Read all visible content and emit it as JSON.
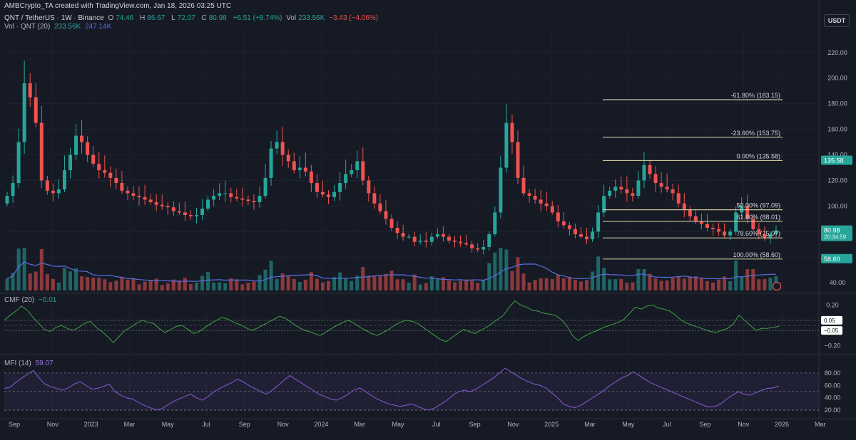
{
  "header": {
    "credit": "AMBCrypto_TA created with TradingView.com, Jan 18, 2026 03:25 UTC",
    "symbol": "QNT / TetherUS · 1W · Binance",
    "ohlc": [
      {
        "label": "O",
        "value": "74.46"
      },
      {
        "label": "H",
        "value": "86.67"
      },
      {
        "label": "L",
        "value": "72.07"
      },
      {
        "label": "C",
        "value": "80.98"
      }
    ],
    "change": "+6.51 (+8.74%)",
    "volume_label": "Vol",
    "volume_value": "233.56K",
    "volume_change": "−3.43 (−4.06%)",
    "vol_indicator": "Vol · QNT (20)",
    "vol_value": "233.56K",
    "vol_ma": "247.14K",
    "currency": "USDT",
    "cmf_label": "CMF (20)",
    "cmf_value": "−0.01",
    "mfi_label": "MFI (14)",
    "mfi_value": "59.07"
  },
  "chart_data": {
    "type": "candlestick",
    "timeframe": "1W",
    "x_labels": [
      "Sep",
      "Nov",
      "2023",
      "Mar",
      "May",
      "Jul",
      "Sep",
      "Nov",
      "2024",
      "Mar",
      "May",
      "Jul",
      "Sep",
      "Nov",
      "2025",
      "Mar",
      "May",
      "Jul",
      "Sep",
      "Nov",
      "2026",
      "Mar"
    ],
    "y_ticks": [
      "40.00",
      "60.00",
      "80.00",
      "100.00",
      "120.00",
      "140.00",
      "160.00",
      "180.00",
      "200.00",
      "220.00"
    ],
    "y_range": [
      34,
      236
    ],
    "price_labels": [
      {
        "text": "135.58",
        "value": 135.58,
        "color": "#26a69a"
      },
      {
        "text": "80.98",
        "value": 80.98,
        "color": "#26a69a",
        "sub": "20:34:59"
      },
      {
        "text": "58.60",
        "value": 58.6,
        "color": "#26a69a"
      }
    ],
    "fib_levels": [
      {
        "label": "-61.80% (183.15)",
        "value": 183.15
      },
      {
        "label": "-23.60% (153.75)",
        "value": 153.75
      },
      {
        "label": "0.00% (135.58)",
        "value": 135.58
      },
      {
        "label": "50.00% (97.09)",
        "value": 97.09
      },
      {
        "label": "61.80% (88.01)",
        "value": 88.01
      },
      {
        "label": "78.60% (75.07)",
        "value": 75.07
      },
      {
        "label": "100.00% (58.60)",
        "value": 58.6
      }
    ],
    "price_path": [
      102,
      108,
      118,
      150,
      196,
      185,
      165,
      120,
      112,
      110,
      113,
      128,
      140,
      155,
      150,
      140,
      133,
      128,
      126,
      122,
      118,
      112,
      110,
      108,
      107,
      105,
      103,
      101,
      100,
      99,
      96,
      95,
      93,
      92,
      93,
      98,
      105,
      108,
      110,
      110,
      107,
      106,
      105,
      104,
      103,
      108,
      122,
      145,
      150,
      140,
      135,
      128,
      130,
      127,
      118,
      111,
      109,
      107,
      111,
      118,
      125,
      128,
      135,
      120,
      110,
      102,
      96,
      90,
      83,
      79,
      76,
      76,
      72,
      73,
      72,
      76,
      78,
      76,
      73,
      72,
      71,
      70,
      67,
      66,
      68,
      78,
      95,
      130,
      165,
      150,
      122,
      110,
      108,
      105,
      102,
      100,
      95,
      88,
      85,
      82,
      78,
      76,
      74,
      80,
      95,
      108,
      112,
      115,
      113,
      110,
      108,
      120,
      132,
      125,
      118,
      115,
      113,
      110,
      102,
      97,
      92,
      88,
      86,
      83,
      82,
      80,
      77,
      80,
      95,
      100,
      90,
      82,
      78,
      75,
      78,
      81
    ],
    "cmf": {
      "ticks": [
        "0.20",
        "−0.20"
      ],
      "bands": [
        0.05,
        -0.05
      ],
      "band_labels": [
        "0.05",
        "−0.05"
      ],
      "range": [
        -0.26,
        0.26
      ],
      "values": [
        0.05,
        0.1,
        0.14,
        0.19,
        0.15,
        0.08,
        0.02,
        -0.04,
        -0.06,
        -0.02,
        0.0,
        -0.03,
        -0.05,
        -0.02,
        0.02,
        0.04,
        -0.02,
        -0.06,
        -0.11,
        -0.17,
        -0.11,
        -0.05,
        -0.02,
        0.02,
        0.05,
        0.03,
        0.02,
        -0.03,
        -0.07,
        -0.04,
        -0.01,
        0.0,
        -0.04,
        -0.08,
        -0.06,
        -0.02,
        0.02,
        0.05,
        0.08,
        0.06,
        0.03,
        0.01,
        -0.02,
        -0.05,
        -0.03,
        0.0,
        0.03,
        0.06,
        0.09,
        0.07,
        0.03,
        -0.01,
        -0.04,
        -0.06,
        -0.08,
        -0.1,
        -0.07,
        -0.03,
        0.0,
        0.03,
        0.05,
        0.02,
        -0.02,
        -0.05,
        -0.08,
        -0.1,
        -0.07,
        -0.04,
        0.0,
        0.03,
        0.05,
        0.04,
        0.02,
        -0.02,
        -0.06,
        -0.1,
        -0.14,
        -0.16,
        -0.12,
        -0.08,
        -0.04,
        -0.06,
        -0.08,
        -0.05,
        -0.02,
        0.02,
        0.06,
        0.1,
        0.18,
        0.24,
        0.2,
        0.18,
        0.15,
        0.14,
        0.12,
        0.11,
        0.1,
        0.06,
        0.0,
        -0.1,
        -0.15,
        -0.11,
        -0.08,
        -0.06,
        -0.03,
        -0.01,
        0.01,
        0.03,
        0.06,
        0.12,
        0.18,
        0.16,
        0.19,
        0.2,
        0.17,
        0.16,
        0.14,
        0.1,
        0.05,
        0.02,
        0.0,
        -0.02,
        -0.04,
        -0.06,
        -0.07,
        -0.05,
        -0.03,
        0.01,
        0.1,
        0.05,
        0.0,
        -0.05,
        -0.03,
        -0.03,
        -0.02,
        -0.01
      ]
    },
    "mfi": {
      "ticks": [
        "80.00",
        "60.00",
        "40.00",
        "20.00"
      ],
      "bands": [
        80,
        50,
        20
      ],
      "range": [
        12,
        96
      ],
      "values": [
        55,
        57,
        65,
        72,
        78,
        84,
        72,
        62,
        58,
        55,
        52,
        56,
        62,
        66,
        60,
        54,
        55,
        58,
        62,
        50,
        44,
        40,
        38,
        33,
        28,
        24,
        21,
        22,
        28,
        34,
        38,
        42,
        46,
        40,
        36,
        42,
        50,
        55,
        60,
        64,
        70,
        66,
        60,
        55,
        50,
        46,
        52,
        60,
        68,
        76,
        70,
        64,
        58,
        52,
        46,
        42,
        38,
        36,
        40,
        46,
        52,
        56,
        50,
        44,
        38,
        34,
        30,
        28,
        26,
        28,
        30,
        26,
        22,
        20,
        24,
        30,
        36,
        44,
        50,
        52,
        50,
        54,
        60,
        66,
        72,
        80,
        88,
        82,
        76,
        70,
        66,
        62,
        60,
        56,
        48,
        40,
        30,
        26,
        24,
        28,
        34,
        40,
        46,
        52,
        60,
        66,
        72,
        76,
        82,
        76,
        70,
        64,
        60,
        56,
        52,
        48,
        44,
        40,
        36,
        32,
        28,
        25,
        26,
        30,
        38,
        44,
        50,
        46,
        44,
        48,
        52,
        55,
        56,
        59
      ]
    }
  }
}
